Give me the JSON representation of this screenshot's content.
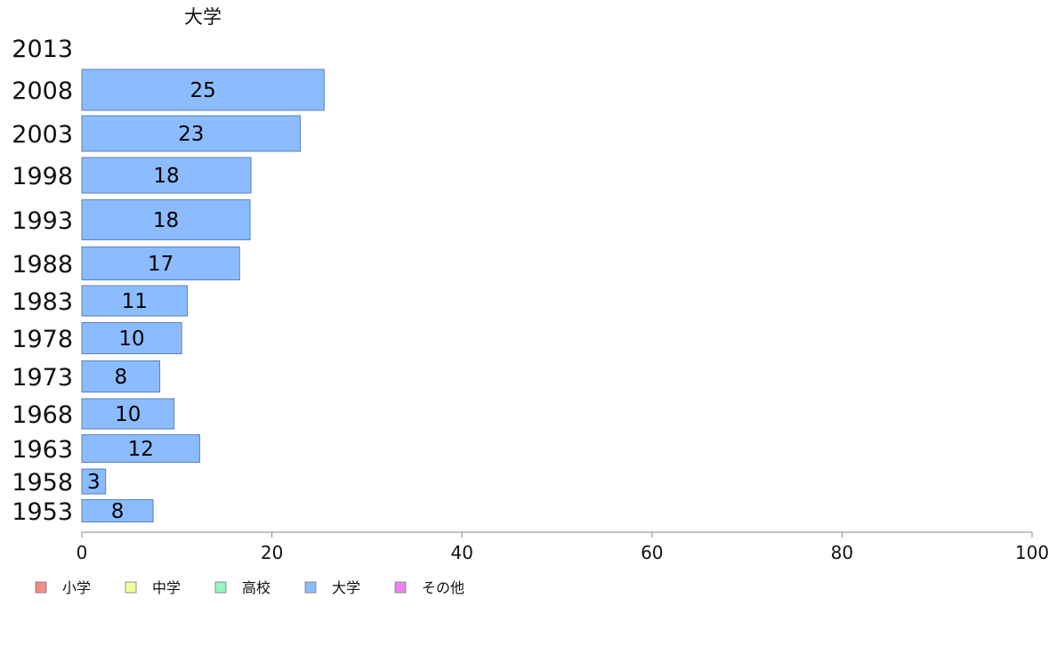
{
  "chart_data": {
    "type": "bar",
    "orientation": "horizontal",
    "title": "大学",
    "categories": [
      "2013",
      "2008",
      "2003",
      "1998",
      "1993",
      "1988",
      "1983",
      "1978",
      "1973",
      "1968",
      "1963",
      "1958",
      "1953"
    ],
    "series": [
      {
        "name": "大学",
        "color": "#8bbcff",
        "values": [
          null,
          25.5,
          23,
          17.8,
          17.7,
          16.6,
          11.1,
          10.5,
          8.2,
          9.7,
          12.4,
          2.5,
          7.5
        ],
        "labels": [
          "",
          "25",
          "23",
          "18",
          "18",
          "17",
          "11",
          "10",
          "8",
          "10",
          "12",
          "3",
          "8"
        ]
      }
    ],
    "xlim": [
      0,
      100
    ],
    "xticks": [
      "0",
      "20",
      "40",
      "60",
      "80",
      "100"
    ],
    "legend": {
      "placement": "bottom-left",
      "items": [
        {
          "label": "小学",
          "color": "#f48c84"
        },
        {
          "label": "中学",
          "color": "#f2ff9a"
        },
        {
          "label": "高校",
          "color": "#93f7c2"
        },
        {
          "label": "大学",
          "color": "#8bbcff"
        },
        {
          "label": "その他",
          "color": "#e985f3"
        }
      ]
    }
  }
}
